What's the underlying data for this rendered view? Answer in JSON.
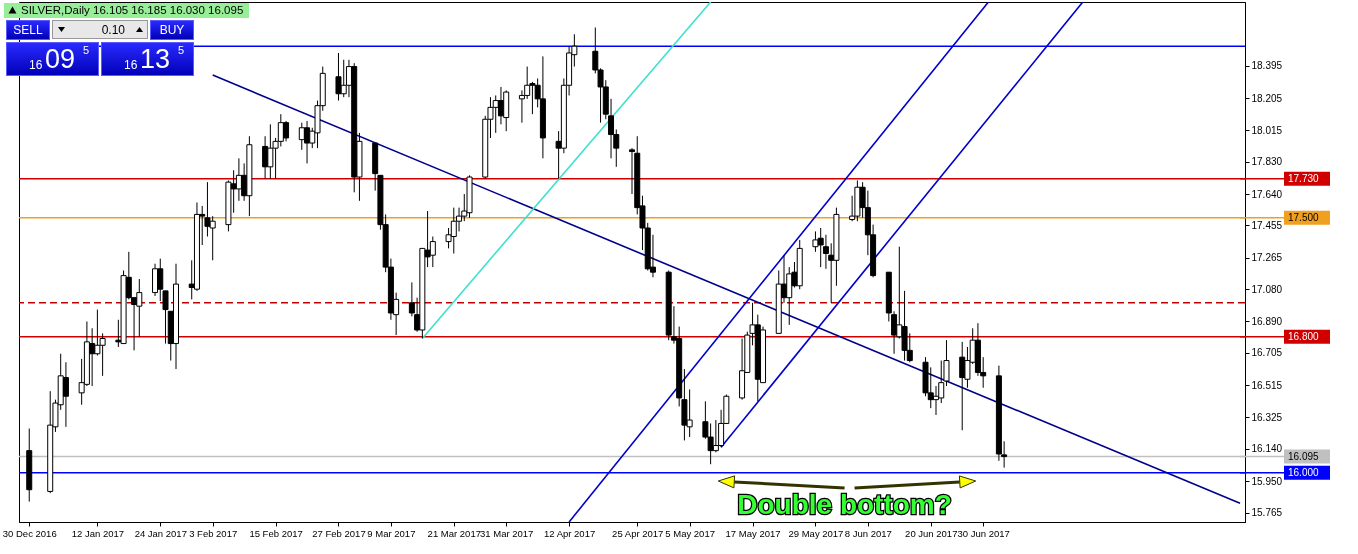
{
  "chart_data": {
    "type": "candlestick",
    "title": "SILVER,Daily 16.105 16.185 16.030 16.095",
    "annotations": [
      "Double bottom?",
      "SELL",
      "0.10",
      "BUY",
      "16",
      "09",
      "5",
      "16",
      "13",
      "5"
    ],
    "x": [
      "2016-12-30",
      "2017-01-03",
      "2017-01-04",
      "2017-01-05",
      "2017-01-06",
      "2017-01-09",
      "2017-01-10",
      "2017-01-11",
      "2017-01-12",
      "2017-01-13",
      "2017-01-16",
      "2017-01-17",
      "2017-01-18",
      "2017-01-19",
      "2017-01-20",
      "2017-01-23",
      "2017-01-24",
      "2017-01-25",
      "2017-01-26",
      "2017-01-27",
      "2017-01-30",
      "2017-01-31",
      "2017-02-01",
      "2017-02-02",
      "2017-02-03",
      "2017-02-06",
      "2017-02-07",
      "2017-02-08",
      "2017-02-09",
      "2017-02-10",
      "2017-02-13",
      "2017-02-14",
      "2017-02-15",
      "2017-02-16",
      "2017-02-17",
      "2017-02-20",
      "2017-02-21",
      "2017-02-22",
      "2017-02-23",
      "2017-02-24",
      "2017-02-27",
      "2017-02-28",
      "2017-03-01",
      "2017-03-02",
      "2017-03-03",
      "2017-03-06",
      "2017-03-07",
      "2017-03-08",
      "2017-03-09",
      "2017-03-10",
      "2017-03-13",
      "2017-03-14",
      "2017-03-15",
      "2017-03-16",
      "2017-03-17",
      "2017-03-20",
      "2017-03-21",
      "2017-03-22",
      "2017-03-23",
      "2017-03-24",
      "2017-03-27",
      "2017-03-28",
      "2017-03-29",
      "2017-03-30",
      "2017-03-31",
      "2017-04-03",
      "2017-04-04",
      "2017-04-05",
      "2017-04-06",
      "2017-04-07",
      "2017-04-10",
      "2017-04-11",
      "2017-04-12",
      "2017-04-13",
      "2017-04-17",
      "2017-04-18",
      "2017-04-19",
      "2017-04-20",
      "2017-04-21",
      "2017-04-24",
      "2017-04-25",
      "2017-04-26",
      "2017-04-27",
      "2017-04-28",
      "2017-05-01",
      "2017-05-02",
      "2017-05-03",
      "2017-05-04",
      "2017-05-05",
      "2017-05-08",
      "2017-05-09",
      "2017-05-10",
      "2017-05-11",
      "2017-05-12",
      "2017-05-15",
      "2017-05-16",
      "2017-05-17",
      "2017-05-18",
      "2017-05-19",
      "2017-05-22",
      "2017-05-23",
      "2017-05-24",
      "2017-05-25",
      "2017-05-26",
      "2017-05-29",
      "2017-05-30",
      "2017-05-31",
      "2017-06-01",
      "2017-06-02",
      "2017-06-05",
      "2017-06-06",
      "2017-06-07",
      "2017-06-08",
      "2017-06-09",
      "2017-06-12",
      "2017-06-13",
      "2017-06-14",
      "2017-06-15",
      "2017-06-16",
      "2017-06-19",
      "2017-06-20",
      "2017-06-21",
      "2017-06-22",
      "2017-06-23",
      "2017-06-26",
      "2017-06-27",
      "2017-06-28",
      "2017-06-29",
      "2017-06-30",
      "2017-07-03",
      "2017-07-04"
    ],
    "ohlc": [
      [
        16.13,
        16.26,
        15.83,
        15.9
      ],
      [
        15.89,
        16.48,
        15.88,
        16.28
      ],
      [
        16.27,
        16.43,
        16.24,
        16.41
      ],
      [
        16.4,
        16.7,
        16.37,
        16.57
      ],
      [
        16.56,
        16.65,
        16.27,
        16.45
      ],
      [
        16.47,
        16.67,
        16.4,
        16.53
      ],
      [
        16.52,
        16.89,
        16.51,
        16.77
      ],
      [
        16.76,
        16.85,
        16.51,
        16.7
      ],
      [
        16.7,
        16.96,
        16.69,
        16.75
      ],
      [
        16.75,
        16.82,
        16.57,
        16.79
      ],
      [
        16.78,
        16.9,
        16.74,
        16.77
      ],
      [
        16.76,
        17.19,
        16.76,
        17.16
      ],
      [
        17.15,
        17.3,
        17.02,
        17.03
      ],
      [
        17.03,
        17.03,
        16.72,
        16.99
      ],
      [
        16.98,
        17.14,
        16.8,
        17.06
      ],
      [
        17.06,
        17.23,
        17.04,
        17.2
      ],
      [
        17.2,
        17.26,
        17.01,
        17.08
      ],
      [
        17.07,
        17.07,
        16.76,
        16.96
      ],
      [
        16.95,
        16.95,
        16.66,
        16.76
      ],
      [
        16.76,
        17.23,
        16.61,
        17.11
      ],
      [
        17.11,
        17.25,
        17.02,
        17.09
      ],
      [
        17.08,
        17.59,
        17.07,
        17.52
      ],
      [
        17.52,
        17.57,
        17.34,
        17.51
      ],
      [
        17.5,
        17.71,
        17.39,
        17.45
      ],
      [
        17.44,
        17.51,
        17.25,
        17.48
      ],
      [
        17.46,
        17.72,
        17.42,
        17.71
      ],
      [
        17.7,
        17.78,
        17.53,
        17.67
      ],
      [
        17.67,
        17.85,
        17.6,
        17.75
      ],
      [
        17.75,
        17.82,
        17.6,
        17.63
      ],
      [
        17.63,
        17.98,
        17.51,
        17.93
      ],
      [
        17.92,
        17.98,
        17.73,
        17.8
      ],
      [
        17.8,
        18.05,
        17.73,
        17.91
      ],
      [
        17.91,
        17.97,
        17.73,
        17.95
      ],
      [
        17.95,
        18.11,
        17.92,
        18.06
      ],
      [
        18.06,
        18.07,
        17.95,
        17.97
      ],
      [
        17.96,
        18.06,
        17.9,
        18.03
      ],
      [
        18.03,
        18.07,
        17.82,
        17.94
      ],
      [
        17.94,
        18.03,
        17.91,
        18.01
      ],
      [
        18.0,
        18.19,
        17.91,
        18.16
      ],
      [
        18.16,
        18.39,
        18.13,
        18.35
      ],
      [
        18.33,
        18.47,
        18.19,
        18.23
      ],
      [
        18.23,
        18.43,
        18.21,
        18.28
      ],
      [
        18.28,
        18.43,
        18.21,
        18.39
      ],
      [
        18.39,
        18.41,
        17.65,
        17.74
      ],
      [
        17.74,
        18.0,
        17.6,
        17.95
      ],
      [
        17.94,
        17.94,
        17.66,
        17.76
      ],
      [
        17.75,
        17.75,
        17.43,
        17.46
      ],
      [
        17.46,
        17.52,
        17.18,
        17.21
      ],
      [
        17.21,
        17.26,
        16.9,
        16.94
      ],
      [
        16.93,
        17.06,
        16.81,
        17.02
      ],
      [
        17.0,
        17.12,
        16.92,
        16.94
      ],
      [
        16.93,
        17.03,
        16.83,
        16.84
      ],
      [
        16.84,
        17.32,
        16.79,
        17.32
      ],
      [
        17.31,
        17.54,
        17.21,
        17.27
      ],
      [
        17.28,
        17.39,
        17.21,
        17.36
      ],
      [
        17.36,
        17.44,
        17.32,
        17.4
      ],
      [
        17.39,
        17.56,
        17.29,
        17.48
      ],
      [
        17.48,
        17.56,
        17.42,
        17.51
      ],
      [
        17.51,
        17.64,
        17.48,
        17.54
      ],
      [
        17.53,
        17.75,
        17.5,
        17.74
      ],
      [
        17.74,
        18.1,
        17.73,
        18.08
      ],
      [
        18.08,
        18.21,
        17.97,
        18.15
      ],
      [
        18.15,
        18.22,
        18.0,
        18.19
      ],
      [
        18.19,
        18.27,
        18.05,
        18.1
      ],
      [
        18.09,
        18.25,
        18.01,
        18.24
      ],
      [
        18.2,
        18.25,
        18.06,
        18.22
      ],
      [
        18.22,
        18.39,
        18.2,
        18.28
      ],
      [
        18.29,
        18.3,
        18.11,
        18.28
      ],
      [
        18.28,
        18.32,
        18.15,
        18.2
      ],
      [
        18.2,
        18.45,
        17.85,
        17.97
      ],
      [
        17.95,
        18.01,
        17.73,
        17.91
      ],
      [
        17.91,
        18.32,
        17.88,
        18.28
      ],
      [
        18.28,
        18.51,
        18.22,
        18.47
      ],
      [
        18.46,
        18.58,
        18.39,
        18.51
      ],
      [
        18.48,
        18.62,
        18.35,
        18.37
      ],
      [
        18.37,
        18.38,
        18.06,
        18.27
      ],
      [
        18.27,
        18.31,
        18.08,
        18.11
      ],
      [
        18.1,
        18.2,
        17.85,
        17.99
      ],
      [
        17.99,
        18.02,
        17.8,
        17.91
      ],
      [
        17.9,
        17.91,
        17.64,
        17.89
      ],
      [
        17.88,
        17.98,
        17.52,
        17.56
      ],
      [
        17.57,
        17.63,
        17.31,
        17.44
      ],
      [
        17.44,
        17.47,
        17.19,
        17.2
      ],
      [
        17.21,
        17.4,
        17.15,
        17.18
      ],
      [
        17.18,
        17.19,
        16.78,
        16.81
      ],
      [
        16.8,
        16.98,
        16.76,
        16.78
      ],
      [
        16.79,
        16.86,
        16.39,
        16.44
      ],
      [
        16.43,
        16.61,
        16.19,
        16.28
      ],
      [
        16.27,
        16.49,
        16.21,
        16.31
      ],
      [
        16.3,
        16.42,
        16.2,
        16.21
      ],
      [
        16.21,
        16.29,
        16.05,
        16.13
      ],
      [
        16.13,
        16.31,
        16.12,
        16.16
      ],
      [
        16.16,
        16.37,
        16.15,
        16.29
      ],
      [
        16.29,
        16.46,
        16.29,
        16.45
      ],
      [
        16.44,
        16.79,
        16.43,
        16.6
      ],
      [
        16.59,
        16.83,
        16.59,
        16.81
      ],
      [
        16.82,
        17.0,
        16.75,
        16.87
      ],
      [
        16.87,
        16.93,
        16.42,
        16.55
      ],
      [
        16.53,
        16.86,
        16.53,
        16.84
      ],
      [
        16.82,
        17.19,
        16.82,
        17.11
      ],
      [
        17.11,
        17.28,
        17.0,
        17.03
      ],
      [
        17.03,
        17.21,
        16.87,
        17.17
      ],
      [
        17.18,
        17.24,
        17.09,
        17.1
      ],
      [
        17.1,
        17.37,
        17.08,
        17.32
      ],
      [
        17.33,
        17.42,
        17.3,
        17.37
      ],
      [
        17.38,
        17.44,
        17.21,
        17.34
      ],
      [
        17.33,
        17.4,
        17.2,
        17.29
      ],
      [
        17.28,
        17.35,
        17.0,
        17.25
      ],
      [
        17.25,
        17.56,
        17.1,
        17.52
      ],
      [
        17.49,
        17.63,
        17.48,
        17.51
      ],
      [
        17.51,
        17.72,
        17.48,
        17.68
      ],
      [
        17.68,
        17.71,
        17.5,
        17.56
      ],
      [
        17.56,
        17.66,
        17.28,
        17.4
      ],
      [
        17.4,
        17.46,
        17.15,
        17.16
      ],
      [
        17.18,
        17.18,
        16.89,
        16.94
      ],
      [
        16.93,
        16.95,
        16.7,
        16.81
      ],
      [
        16.8,
        17.33,
        16.79,
        16.87
      ],
      [
        16.86,
        17.07,
        16.66,
        16.72
      ],
      [
        16.72,
        16.82,
        16.65,
        16.66
      ],
      [
        16.65,
        16.68,
        16.45,
        16.47
      ],
      [
        16.47,
        16.62,
        16.38,
        16.43
      ],
      [
        16.43,
        16.51,
        16.34,
        16.45
      ],
      [
        16.44,
        16.66,
        16.41,
        16.53
      ],
      [
        16.54,
        16.78,
        16.51,
        16.66
      ],
      [
        16.68,
        16.77,
        16.25,
        16.56
      ],
      [
        16.55,
        16.74,
        16.5,
        16.66
      ],
      [
        16.65,
        16.85,
        16.64,
        16.78
      ],
      [
        16.78,
        16.88,
        16.57,
        16.59
      ],
      [
        16.59,
        16.68,
        16.5,
        16.57
      ],
      [
        16.57,
        16.63,
        16.07,
        16.11
      ],
      [
        16.105,
        16.185,
        16.03,
        16.095
      ]
    ],
    "series": [
      {
        "type": "line",
        "color": "#00008b",
        "x": [
          "2017-02-03",
          "2017-08-18"
        ],
        "values": [
          18.34,
          15.82
        ]
      },
      {
        "type": "line",
        "color": "#40e0d0",
        "x": [
          "2017-03-15",
          "2017-05-09"
        ],
        "values": [
          16.79,
          18.77
        ]
      },
      {
        "type": "line",
        "color": "#0000cd",
        "x": [
          "2017-04-12",
          "2017-07-01"
        ],
        "values": [
          15.71,
          18.77
        ]
      },
      {
        "type": "line",
        "color": "#0000cd",
        "x": [
          "2017-05-11",
          "2017-07-19"
        ],
        "values": [
          16.15,
          18.77
        ]
      }
    ],
    "ref_lines": [
      {
        "axis": "y",
        "value": 18.51,
        "color": "#0000ff"
      },
      {
        "axis": "y",
        "value": 17.73,
        "label": "17.730",
        "color": "#d00000"
      },
      {
        "axis": "y",
        "value": 17.5,
        "label": "17.500",
        "color": "#f0a020"
      },
      {
        "axis": "y",
        "value": 17.0,
        "color": "#c00000",
        "line_style": "dashed"
      },
      {
        "axis": "y",
        "value": 16.8,
        "label": "16.800",
        "color": "#d00000"
      },
      {
        "axis": "y",
        "value": 16.095,
        "label": "16.095",
        "color": "#c0c0c0"
      },
      {
        "axis": "y",
        "value": 16.0,
        "label": "16.000",
        "color": "#0000ff"
      }
    ],
    "xlim": [
      "2016-12-29",
      "2017-08-18"
    ],
    "xticks": [
      {
        "value": "2016-12-30",
        "label": "30 Dec 2016"
      },
      {
        "value": "2017-01-12",
        "label": "12 Jan 2017"
      },
      {
        "value": "2017-01-24",
        "label": "24 Jan 2017"
      },
      {
        "value": "2017-02-03",
        "label": "3 Feb 2017"
      },
      {
        "value": "2017-02-15",
        "label": "15 Feb 2017"
      },
      {
        "value": "2017-02-27",
        "label": "27 Feb 2017"
      },
      {
        "value": "2017-03-09",
        "label": "9 Mar 2017"
      },
      {
        "value": "2017-03-21",
        "label": "21 Mar 2017"
      },
      {
        "value": "2017-03-31",
        "label": "31 Mar 2017"
      },
      {
        "value": "2017-04-12",
        "label": "12 Apr 2017"
      },
      {
        "value": "2017-04-25",
        "label": "25 Apr 2017"
      },
      {
        "value": "2017-05-05",
        "label": "5 May 2017"
      },
      {
        "value": "2017-05-17",
        "label": "17 May 2017"
      },
      {
        "value": "2017-05-29",
        "label": "29 May 2017"
      },
      {
        "value": "2017-06-08",
        "label": "8 Jun 2017"
      },
      {
        "value": "2017-06-20",
        "label": "20 Jun 2017"
      },
      {
        "value": "2017-06-30",
        "label": "30 Jun 2017"
      }
    ],
    "ylim": [
      15.71,
      18.77
    ],
    "yticks": [
      18.395,
      18.205,
      18.015,
      {
        "value": 17.83,
        "label": "17.830"
      },
      {
        "value": 17.64,
        "label": "17.640"
      },
      17.455,
      17.265,
      {
        "value": 17.08,
        "label": "17.080"
      },
      {
        "value": 16.89,
        "label": "16.890"
      },
      16.705,
      16.515,
      16.325,
      {
        "value": 16.14,
        "label": "16.140"
      },
      {
        "value": 15.95,
        "label": "15.950"
      },
      15.765
    ]
  }
}
